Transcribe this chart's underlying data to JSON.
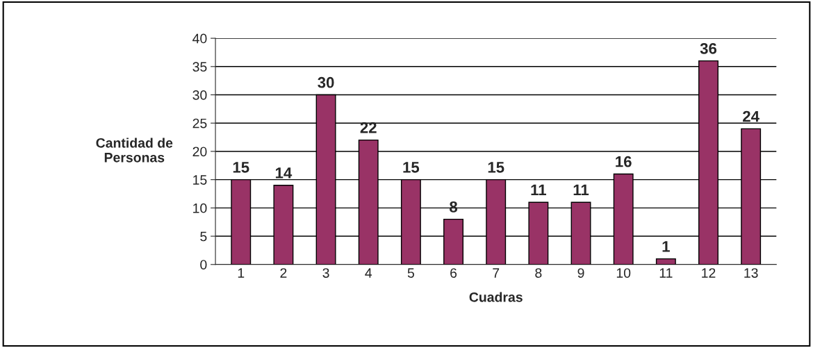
{
  "chart_data": {
    "type": "bar",
    "xlabel": "Cuadras",
    "ylabel": "Cantidad de\nPersonas",
    "categories": [
      "1",
      "2",
      "3",
      "4",
      "5",
      "6",
      "7",
      "8",
      "9",
      "10",
      "11",
      "12",
      "13"
    ],
    "values": [
      15,
      14,
      30,
      22,
      15,
      8,
      15,
      11,
      11,
      16,
      1,
      36,
      24
    ],
    "color": "#993366",
    "ylim": [
      0,
      40
    ],
    "yticks": [
      0,
      5,
      10,
      15,
      20,
      25,
      30,
      35,
      40
    ],
    "grid": "y",
    "data_labels": true
  }
}
